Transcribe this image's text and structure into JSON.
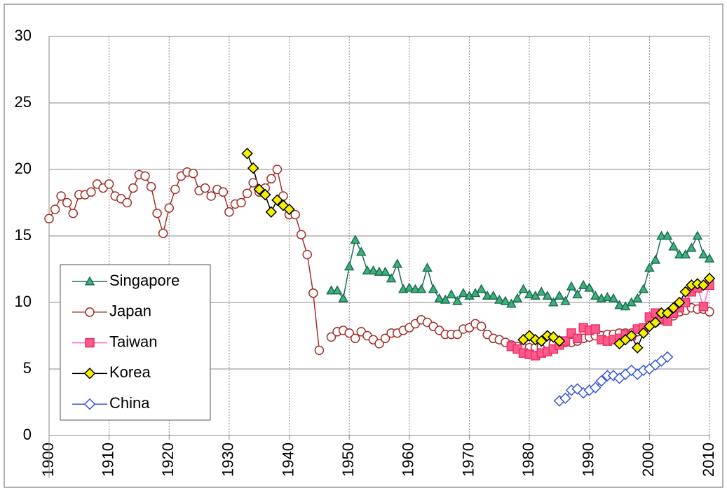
{
  "chart_data": {
    "type": "line",
    "x": [
      1900,
      1901,
      1902,
      1903,
      1904,
      1905,
      1906,
      1907,
      1908,
      1909,
      1910,
      1911,
      1912,
      1913,
      1914,
      1915,
      1916,
      1917,
      1918,
      1919,
      1920,
      1921,
      1922,
      1923,
      1924,
      1925,
      1926,
      1927,
      1928,
      1929,
      1930,
      1931,
      1932,
      1933,
      1934,
      1935,
      1936,
      1937,
      1938,
      1939,
      1940,
      1941,
      1942,
      1943,
      1944,
      1945,
      1946,
      1947,
      1948,
      1949,
      1950,
      1951,
      1952,
      1953,
      1954,
      1955,
      1956,
      1957,
      1958,
      1959,
      1960,
      1961,
      1962,
      1963,
      1964,
      1965,
      1966,
      1967,
      1968,
      1969,
      1970,
      1971,
      1972,
      1973,
      1974,
      1975,
      1976,
      1977,
      1978,
      1979,
      1980,
      1981,
      1982,
      1983,
      1984,
      1985,
      1986,
      1987,
      1988,
      1989,
      1990,
      1991,
      1992,
      1993,
      1994,
      1995,
      1996,
      1997,
      1998,
      1999,
      2000,
      2001,
      2002,
      2003,
      2004,
      2005,
      2006,
      2007,
      2008,
      2009,
      2010
    ],
    "xlim": [
      1900,
      2010
    ],
    "xticks": [
      1900,
      1910,
      1920,
      1930,
      1940,
      1950,
      1960,
      1970,
      1980,
      1990,
      2000,
      2010
    ],
    "ylim": [
      0,
      30
    ],
    "yticks": [
      0,
      5,
      10,
      15,
      20,
      25,
      30
    ],
    "grid": true,
    "series": [
      {
        "name": "Singapore",
        "color": "#1d6b5c",
        "marker": "triangle",
        "marker_fill": "#3cb371",
        "marker_stroke": "#1d6b5c",
        "values": [
          null,
          null,
          null,
          null,
          null,
          null,
          null,
          null,
          null,
          null,
          null,
          null,
          null,
          null,
          null,
          null,
          null,
          null,
          null,
          null,
          null,
          null,
          null,
          null,
          null,
          null,
          null,
          null,
          null,
          null,
          null,
          null,
          null,
          null,
          null,
          null,
          null,
          null,
          null,
          null,
          null,
          null,
          null,
          null,
          null,
          null,
          null,
          10.9,
          10.9,
          10.3,
          12.7,
          14.7,
          13.8,
          12.4,
          12.4,
          12.3,
          12.3,
          11.8,
          12.9,
          11.0,
          11.1,
          11.0,
          11.0,
          12.6,
          11.0,
          10.3,
          10.2,
          10.6,
          10.1,
          10.7,
          10.5,
          10.7,
          11.0,
          10.5,
          10.5,
          10.2,
          10.1,
          9.9,
          10.3,
          11.0,
          10.6,
          10.5,
          10.8,
          10.5,
          10.0,
          10.5,
          10.1,
          11.2,
          10.6,
          11.3,
          11.1,
          10.5,
          10.3,
          10.4,
          10.3,
          9.8,
          9.7,
          10.0,
          10.3,
          11.0,
          12.6,
          13.2,
          15.0,
          15.0,
          14.2,
          13.6,
          13.6,
          14.1,
          15.0,
          13.6,
          13.3
        ]
      },
      {
        "name": "Japan",
        "color": "#a0302a",
        "marker": "circle",
        "marker_fill": "#ffffff",
        "marker_stroke": "#a0302a",
        "values": [
          16.3,
          17.0,
          18.0,
          17.5,
          16.7,
          18.1,
          18.1,
          18.3,
          18.9,
          18.6,
          18.9,
          18.0,
          17.8,
          17.5,
          18.6,
          19.6,
          19.5,
          18.7,
          16.7,
          15.2,
          17.1,
          18.5,
          19.5,
          19.8,
          19.7,
          18.4,
          18.6,
          18.0,
          18.5,
          18.3,
          16.8,
          17.4,
          17.5,
          18.2,
          19.0,
          18.3,
          18.6,
          19.3,
          20.0,
          18.0,
          16.6,
          16.6,
          15.1,
          13.6,
          10.7,
          6.4,
          null,
          7.4,
          7.8,
          7.9,
          7.7,
          7.3,
          7.8,
          7.5,
          7.2,
          6.9,
          7.3,
          7.7,
          7.7,
          7.9,
          8.1,
          8.4,
          8.7,
          8.5,
          8.2,
          7.9,
          7.6,
          7.6,
          7.6,
          8.0,
          8.1,
          8.4,
          8.2,
          7.6,
          7.3,
          7.2,
          7.0,
          6.8,
          6.7,
          6.6,
          6.6,
          6.6,
          6.7,
          6.9,
          6.9,
          6.9,
          7.0,
          7.0,
          7.1,
          7.3,
          7.4,
          7.5,
          7.5,
          7.6,
          7.6,
          7.7,
          7.7,
          7.7,
          7.8,
          8.0,
          8.3,
          8.5,
          8.7,
          8.9,
          9.0,
          9.3,
          9.4,
          9.6,
          9.5,
          9.5,
          9.3
        ]
      },
      {
        "name": "Taiwan",
        "color": "#ff66cc",
        "marker": "square",
        "marker_fill": "#ff5a8a",
        "marker_stroke": "#e8306a",
        "values": [
          null,
          null,
          null,
          null,
          null,
          null,
          null,
          null,
          null,
          null,
          null,
          null,
          null,
          null,
          null,
          null,
          null,
          null,
          null,
          null,
          null,
          null,
          null,
          null,
          null,
          null,
          null,
          null,
          null,
          null,
          null,
          null,
          null,
          null,
          null,
          null,
          null,
          null,
          null,
          null,
          null,
          null,
          null,
          null,
          null,
          null,
          null,
          null,
          null,
          null,
          null,
          null,
          null,
          null,
          null,
          null,
          null,
          null,
          null,
          null,
          null,
          null,
          null,
          null,
          null,
          null,
          null,
          null,
          null,
          null,
          null,
          null,
          null,
          null,
          null,
          null,
          null,
          6.7,
          6.5,
          6.2,
          6.1,
          6.0,
          6.2,
          6.3,
          6.5,
          6.8,
          7.1,
          7.7,
          7.3,
          8.1,
          7.9,
          8.0,
          7.2,
          7.1,
          7.2,
          7.3,
          7.6,
          7.5,
          8.0,
          8.1,
          8.9,
          9.2,
          8.8,
          8.6,
          9.2,
          9.6,
          10.0,
          10.8,
          11.1,
          9.7,
          11.3
        ]
      },
      {
        "name": "Korea",
        "color": "#000000",
        "marker": "diamond",
        "marker_fill": "#f5f000",
        "marker_stroke": "#000000",
        "values": [
          null,
          null,
          null,
          null,
          null,
          null,
          null,
          null,
          null,
          null,
          null,
          null,
          null,
          null,
          null,
          null,
          null,
          null,
          null,
          null,
          null,
          null,
          null,
          null,
          null,
          null,
          null,
          null,
          null,
          null,
          null,
          null,
          null,
          21.2,
          20.1,
          18.5,
          18.1,
          16.8,
          17.7,
          17.3,
          17.0,
          null,
          null,
          null,
          null,
          null,
          null,
          null,
          null,
          null,
          null,
          null,
          null,
          null,
          null,
          null,
          null,
          null,
          null,
          null,
          null,
          null,
          null,
          null,
          null,
          null,
          null,
          null,
          null,
          null,
          null,
          null,
          null,
          null,
          null,
          null,
          null,
          null,
          null,
          7.2,
          7.5,
          7.2,
          7.1,
          7.5,
          7.4,
          7.1,
          null,
          null,
          null,
          null,
          null,
          null,
          null,
          null,
          null,
          6.9,
          7.2,
          7.5,
          6.6,
          7.7,
          8.2,
          8.5,
          9.2,
          9.2,
          9.6,
          10.0,
          10.8,
          11.3,
          11.4,
          11.3,
          11.8
        ]
      },
      {
        "name": "China",
        "color": "#3355dd",
        "marker": "diamond",
        "marker_fill": "#ffffff",
        "marker_stroke": "#3355dd",
        "values": [
          null,
          null,
          null,
          null,
          null,
          null,
          null,
          null,
          null,
          null,
          null,
          null,
          null,
          null,
          null,
          null,
          null,
          null,
          null,
          null,
          null,
          null,
          null,
          null,
          null,
          null,
          null,
          null,
          null,
          null,
          null,
          null,
          null,
          null,
          null,
          null,
          null,
          null,
          null,
          null,
          null,
          null,
          null,
          null,
          null,
          null,
          null,
          null,
          null,
          null,
          null,
          null,
          null,
          null,
          null,
          null,
          null,
          null,
          null,
          null,
          null,
          null,
          null,
          null,
          null,
          null,
          null,
          null,
          null,
          null,
          null,
          null,
          null,
          null,
          null,
          null,
          null,
          null,
          null,
          null,
          null,
          null,
          null,
          null,
          null,
          2.6,
          2.8,
          3.4,
          3.5,
          3.2,
          3.4,
          3.6,
          4.1,
          4.5,
          4.5,
          4.3,
          4.6,
          4.9,
          4.6,
          4.9,
          5.0,
          5.3,
          5.6,
          5.9,
          null,
          null,
          null,
          null,
          null,
          null,
          null
        ]
      }
    ]
  }
}
